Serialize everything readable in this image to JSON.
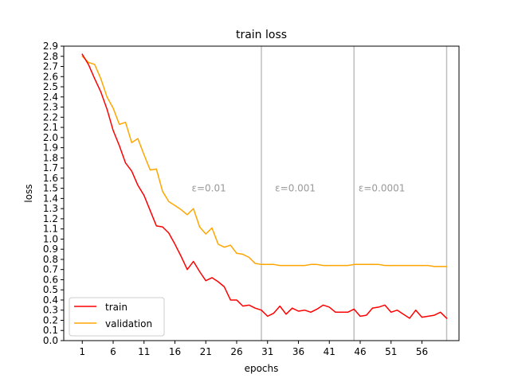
{
  "chart_data": {
    "type": "line",
    "title": "train loss",
    "xlabel": "epochs",
    "ylabel": "loss",
    "xlim": [
      -2,
      62
    ],
    "ylim": [
      0.0,
      2.9
    ],
    "x_ticks": [
      1,
      6,
      11,
      16,
      21,
      26,
      31,
      36,
      41,
      46,
      51,
      56
    ],
    "y_ticks": [
      0.0,
      0.1,
      0.2,
      0.3,
      0.4,
      0.5,
      0.6,
      0.7,
      0.8,
      0.9,
      1.0,
      1.1,
      1.2,
      1.3,
      1.4,
      1.5,
      1.6,
      1.7,
      1.8,
      1.9,
      2.0,
      2.1,
      2.2,
      2.3,
      2.4,
      2.5,
      2.6,
      2.7,
      2.8,
      2.9
    ],
    "grid": false,
    "legend_position": "lower-left",
    "x": [
      1,
      2,
      3,
      4,
      5,
      6,
      7,
      8,
      9,
      10,
      11,
      12,
      13,
      14,
      15,
      16,
      17,
      18,
      19,
      20,
      21,
      22,
      23,
      24,
      25,
      26,
      27,
      28,
      29,
      30,
      31,
      32,
      33,
      34,
      35,
      36,
      37,
      38,
      39,
      40,
      41,
      42,
      43,
      44,
      45,
      46,
      47,
      48,
      49,
      50,
      51,
      52,
      53,
      54,
      55,
      56,
      57,
      58,
      59,
      60
    ],
    "series": [
      {
        "name": "train",
        "color": "#ff0000",
        "values": [
          2.82,
          2.72,
          2.58,
          2.45,
          2.28,
          2.07,
          1.92,
          1.75,
          1.67,
          1.53,
          1.43,
          1.28,
          1.13,
          1.12,
          1.06,
          0.95,
          0.83,
          0.7,
          0.78,
          0.68,
          0.59,
          0.62,
          0.58,
          0.53,
          0.4,
          0.4,
          0.34,
          0.35,
          0.32,
          0.3,
          0.24,
          0.27,
          0.34,
          0.26,
          0.32,
          0.29,
          0.3,
          0.28,
          0.31,
          0.35,
          0.33,
          0.28,
          0.28,
          0.28,
          0.31,
          0.24,
          0.25,
          0.32,
          0.33,
          0.35,
          0.28,
          0.3,
          0.26,
          0.22,
          0.3,
          0.23,
          0.24,
          0.25,
          0.28,
          0.22
        ]
      },
      {
        "name": "validation",
        "color": "#ffa500",
        "values": [
          2.8,
          2.74,
          2.72,
          2.58,
          2.4,
          2.29,
          2.13,
          2.15,
          1.95,
          1.99,
          1.83,
          1.68,
          1.69,
          1.47,
          1.37,
          1.33,
          1.29,
          1.24,
          1.3,
          1.12,
          1.05,
          1.11,
          0.95,
          0.92,
          0.94,
          0.86,
          0.85,
          0.82,
          0.76,
          0.75,
          0.75,
          0.75,
          0.74,
          0.74,
          0.74,
          0.74,
          0.74,
          0.75,
          0.75,
          0.74,
          0.74,
          0.74,
          0.74,
          0.74,
          0.75,
          0.75,
          0.75,
          0.75,
          0.75,
          0.74,
          0.74,
          0.74,
          0.74,
          0.74,
          0.74,
          0.74,
          0.74,
          0.73,
          0.73,
          0.73
        ]
      }
    ],
    "vlines": [
      {
        "x": 30,
        "color": "#bfbfbf"
      },
      {
        "x": 45,
        "color": "#bfbfbf"
      },
      {
        "x": 60,
        "color": "#bfbfbf"
      }
    ],
    "annotations": [
      {
        "text": "ε=0.01",
        "x": 21.5,
        "y": 1.47,
        "color": "#999999"
      },
      {
        "text": "ε=0.001",
        "x": 35.5,
        "y": 1.47,
        "color": "#999999"
      },
      {
        "text": "ε=0.0001",
        "x": 49.5,
        "y": 1.47,
        "color": "#999999"
      }
    ]
  }
}
